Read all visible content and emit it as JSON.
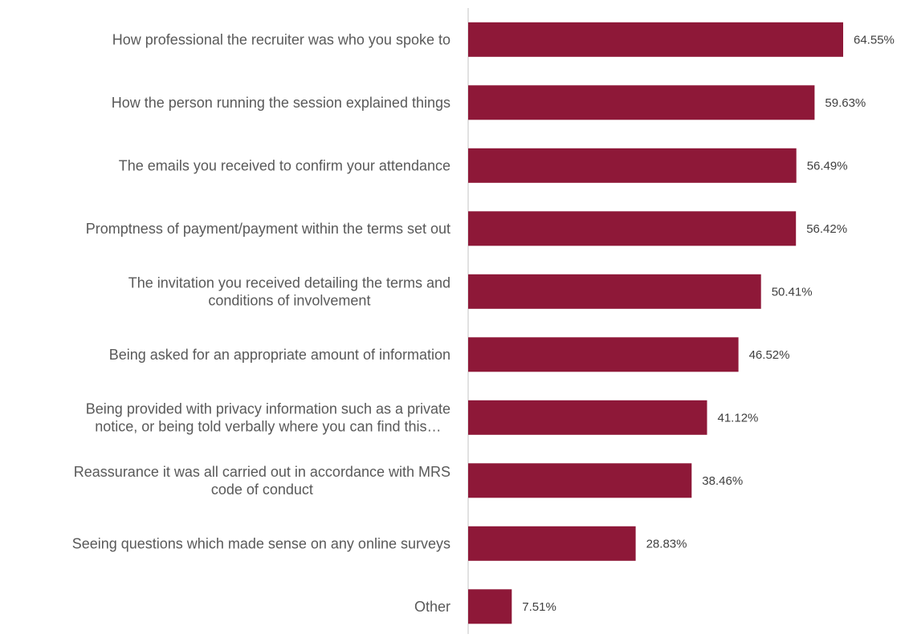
{
  "chart_data": {
    "type": "bar",
    "orientation": "horizontal",
    "categories": [
      [
        "How professional the recruiter was who you spoke to"
      ],
      [
        "How the person running the session explained things"
      ],
      [
        "The emails you received to confirm your attendance"
      ],
      [
        "Promptness of payment/payment within the terms set out"
      ],
      [
        "The invitation you received detailing the terms and",
        "conditions of involvement"
      ],
      [
        "Being asked for an appropriate amount of information"
      ],
      [
        "Being provided with privacy information such as a private",
        "notice, or being told verbally where you can find this…"
      ],
      [
        "Reassurance it was all carried out in accordance with MRS",
        "code of conduct"
      ],
      [
        "Seeing questions which made sense on any online surveys"
      ],
      [
        "Other"
      ]
    ],
    "values": [
      64.55,
      59.63,
      56.49,
      56.42,
      50.41,
      46.52,
      41.12,
      38.46,
      28.83,
      7.51
    ],
    "value_labels": [
      "64.55%",
      "59.63%",
      "56.49%",
      "56.42%",
      "50.41%",
      "46.52%",
      "41.12%",
      "38.46%",
      "28.83%",
      "7.51%"
    ],
    "xlim": [
      0,
      70
    ],
    "bar_color": "#8e1838",
    "axis_color": "#d9d9d9",
    "grid": false,
    "legend": "none"
  }
}
